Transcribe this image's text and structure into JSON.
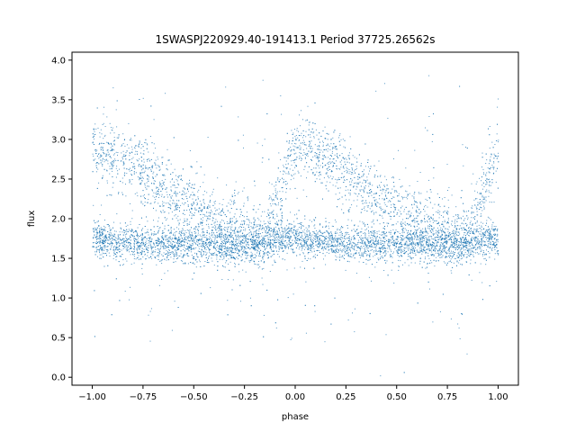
{
  "chart_data": {
    "type": "scatter",
    "title": "1SWASPJ220929.40-191413.1 Period 37725.26562s",
    "xlabel": "phase",
    "ylabel": "flux",
    "xlim": [
      -1.1,
      1.1
    ],
    "ylim": [
      -0.1,
      4.1
    ],
    "xticks": [
      -1.0,
      -0.75,
      -0.5,
      -0.25,
      0.0,
      0.25,
      0.5,
      0.75,
      1.0
    ],
    "xtick_labels": [
      "−1.00",
      "−0.75",
      "−0.50",
      "−0.25",
      "0.00",
      "0.25",
      "0.50",
      "0.75",
      "1.00"
    ],
    "yticks": [
      0.0,
      0.5,
      1.0,
      1.5,
      2.0,
      2.5,
      3.0,
      3.5,
      4.0
    ],
    "ytick_labels": [
      "0.0",
      "0.5",
      "1.0",
      "1.5",
      "2.0",
      "2.5",
      "3.0",
      "3.5",
      "4.0"
    ],
    "grid": false,
    "marker_color": "#1f77b4",
    "series": [
      {
        "description_of_trend": "",
        "x": [
          -1.0,
          -0.95,
          -0.9,
          -0.85,
          -0.8,
          -0.75,
          -0.7,
          -0.65,
          -0.6,
          -0.55,
          -0.5,
          -0.45,
          -0.4,
          -0.35,
          -0.3,
          -0.25,
          -0.2,
          -0.15,
          -0.1,
          -0.05,
          0.0,
          0.05,
          0.1,
          0.15,
          0.2,
          0.25,
          0.3,
          0.35,
          0.4,
          0.45,
          0.5,
          0.55,
          0.6,
          0.65,
          0.7,
          0.75,
          0.8,
          0.85,
          0.9,
          0.95,
          1.0
        ],
        "y_baseline": [
          1.75,
          1.74,
          1.72,
          1.71,
          1.7,
          1.7,
          1.69,
          1.69,
          1.68,
          1.68,
          1.68,
          1.67,
          1.67,
          1.67,
          1.66,
          1.67,
          1.68,
          1.7,
          1.73,
          1.75,
          1.75,
          1.74,
          1.72,
          1.71,
          1.7,
          1.7,
          1.69,
          1.69,
          1.68,
          1.68,
          1.68,
          1.67,
          1.67,
          1.67,
          1.66,
          1.67,
          1.68,
          1.7,
          1.73,
          1.75,
          1.75
        ],
        "y_upper": [
          2.9,
          2.85,
          2.8,
          2.75,
          2.7,
          2.6,
          2.5,
          2.4,
          2.3,
          2.2,
          2.12,
          2.05,
          1.98,
          1.92,
          1.87,
          1.82,
          1.8,
          1.82,
          2.2,
          2.6,
          2.9,
          2.85,
          2.8,
          2.75,
          2.7,
          2.6,
          2.5,
          2.4,
          2.3,
          2.2,
          2.12,
          2.05,
          1.98,
          1.92,
          1.87,
          1.82,
          1.8,
          1.82,
          2.2,
          2.6,
          2.9
        ]
      }
    ]
  }
}
